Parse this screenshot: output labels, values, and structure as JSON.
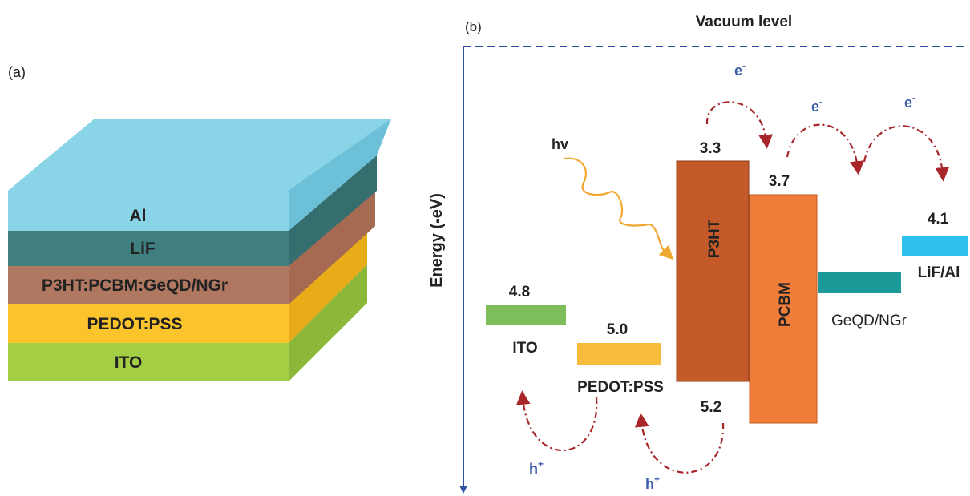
{
  "panel_a": {
    "label": "(a)",
    "layers": {
      "al": "Al",
      "lif": "LiF",
      "active": "P3HT:PCBM:GeQD/NGr",
      "pedot": "PEDOT:PSS",
      "ito": "ITO"
    },
    "colors": {
      "al": "#8ad4e8",
      "lif": "#3f7f7f",
      "active": "#b07860",
      "pedot": "#fcc42c",
      "ito": "#a4cf44"
    }
  },
  "panel_b": {
    "label": "(b)",
    "vacuum_label": "Vacuum level",
    "axis_label": "Energy (-eV)",
    "materials": {
      "ito": {
        "label": "ITO",
        "level": "4.8",
        "color": "#7dbe5a"
      },
      "pedot": {
        "label": "PEDOT:PSS",
        "level": "5.0",
        "color": "#f8bc3c"
      },
      "p3ht": {
        "label": "P3HT",
        "lumo": "3.3",
        "homo": "5.2",
        "color": "#c45a2a"
      },
      "pcbm": {
        "label": "PCBM",
        "lumo": "3.7",
        "color": "#f07e3a"
      },
      "geqd": {
        "label": "GeQD/NGr",
        "color": "#1c9a98"
      },
      "lifal": {
        "label": "LiF/Al",
        "level": "4.1",
        "color": "#2ec0ee"
      }
    },
    "photon_label": "hv",
    "electron_label": "e",
    "electron_sup": "-",
    "hole_label": "h",
    "hole_sup": "+"
  }
}
